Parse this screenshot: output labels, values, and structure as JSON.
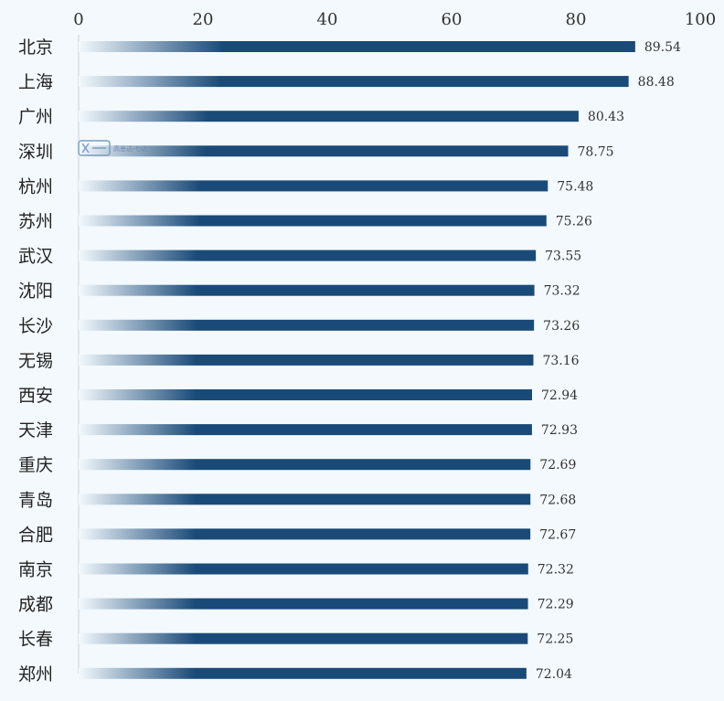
{
  "chart_data": {
    "type": "bar",
    "orientation": "horizontal",
    "categories": [
      "北京",
      "上海",
      "广州",
      "深圳",
      "杭州",
      "苏州",
      "武汉",
      "沈阳",
      "长沙",
      "无锡",
      "西安",
      "天津",
      "重庆",
      "青岛",
      "合肥",
      "南京",
      "成都",
      "长春",
      "郑州"
    ],
    "values": [
      89.54,
      88.48,
      80.43,
      78.75,
      75.48,
      75.26,
      73.55,
      73.32,
      73.26,
      73.16,
      72.94,
      72.93,
      72.69,
      72.68,
      72.67,
      72.32,
      72.29,
      72.25,
      72.04
    ],
    "value_labels": [
      "89.54",
      "88.48",
      "80.43",
      "78.75",
      "75.48",
      "75.26",
      "73.55",
      "73.32",
      "73.26",
      "73.16",
      "72.94",
      "72.93",
      "72.69",
      "72.68",
      "72.67",
      "72.32",
      "72.29",
      "72.25",
      "72.04"
    ],
    "xlim": [
      0,
      100
    ],
    "x_ticks": [
      "0",
      "20",
      "40",
      "60",
      "80",
      "100"
    ],
    "x_axis_position": "top",
    "grid": false,
    "legend": "none",
    "bar_color": "#1a4a78",
    "bar_fade_color": "#f3f9fd",
    "title": "",
    "xlabel": "",
    "ylabel": ""
  },
  "watermark": {
    "text": "高思达·七达"
  }
}
